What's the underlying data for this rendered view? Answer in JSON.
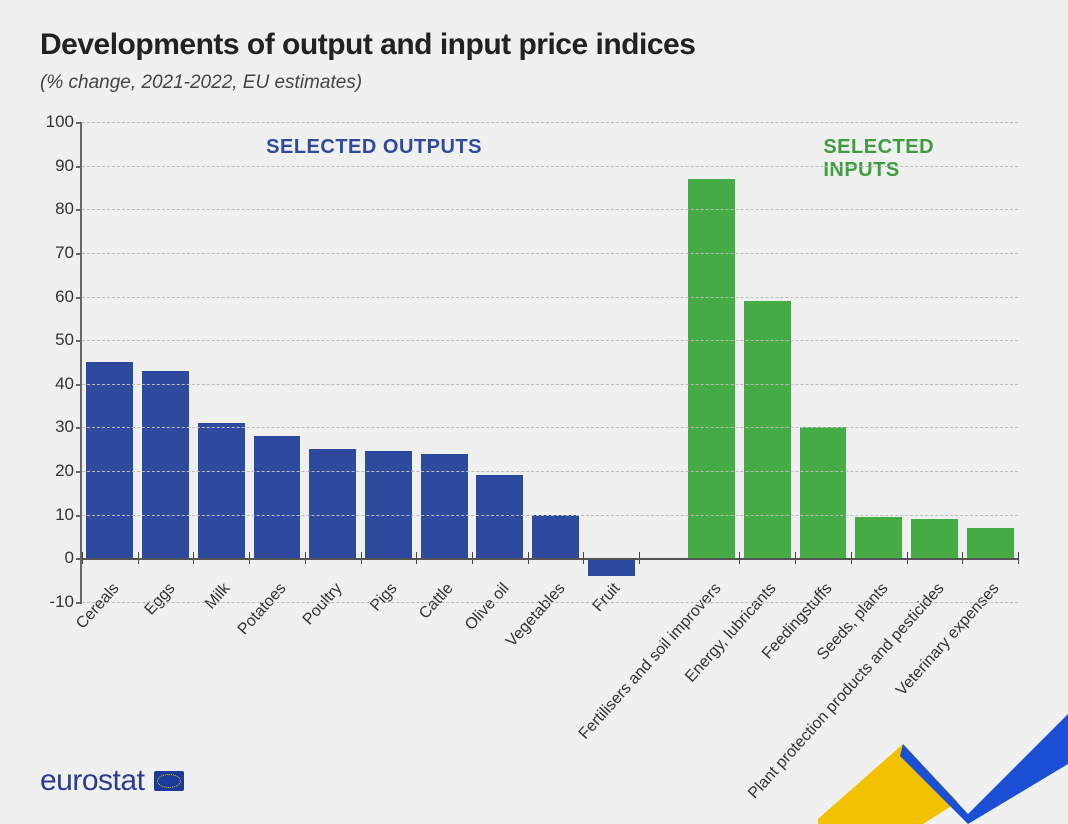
{
  "title": "Developments of output and input price indices",
  "subtitle": "(% change, 2021-2022, EU estimates)",
  "chart": {
    "type": "bar",
    "ylim": [
      -10,
      100
    ],
    "ytick_step": 10,
    "tick_fontsize": 17,
    "background_color": "#f0f0f0",
    "grid_color": "#bbbbbb",
    "axis_color": "#666666",
    "bar_width_ratio": 0.84,
    "section_labels": {
      "outputs": {
        "text": "SELECTED OUTPUTS",
        "color": "#2e4a9e"
      },
      "inputs": {
        "text": "SELECTED INPUTS",
        "color": "#3e9e3e"
      }
    },
    "outputs_color": "#2e4a9e",
    "inputs_color": "#46ad46",
    "outputs": [
      {
        "label": "Cereals",
        "value": 45
      },
      {
        "label": "Eggs",
        "value": 43
      },
      {
        "label": "Milk",
        "value": 31
      },
      {
        "label": "Potatoes",
        "value": 28
      },
      {
        "label": "Poultry",
        "value": 25
      },
      {
        "label": "Pigs",
        "value": 24.5
      },
      {
        "label": "Cattle",
        "value": 24
      },
      {
        "label": "Olive oil",
        "value": 19
      },
      {
        "label": "Vegetables",
        "value": 10
      },
      {
        "label": "Fruit",
        "value": -4
      }
    ],
    "inputs": [
      {
        "label": "Fertilisers and soil improvers",
        "value": 87
      },
      {
        "label": "Energy, lubricants",
        "value": 59
      },
      {
        "label": "Feedingstuffs",
        "value": 30
      },
      {
        "label": "Seeds, plants",
        "value": 9.5
      },
      {
        "label": "Plant protection products and pesticides",
        "value": 9
      },
      {
        "label": "Veterinary expenses",
        "value": 7
      }
    ]
  },
  "footer": {
    "logo_text": "eurostat",
    "logo_color": "#2a3c8f",
    "swoosh_colors": {
      "yellow": "#f2c200",
      "blue": "#1a4fd6"
    }
  }
}
